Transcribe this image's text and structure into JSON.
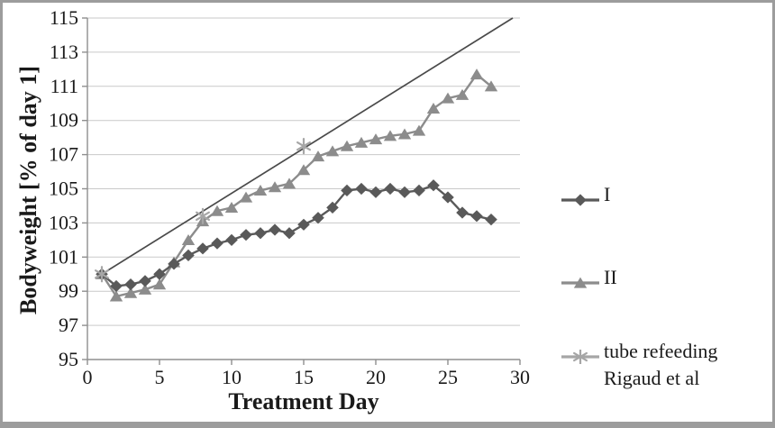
{
  "chart_data": {
    "type": "line",
    "title": "",
    "xlabel": "Treatment Day",
    "ylabel": "Bodyweight [% of day 1]",
    "xlim": [
      0,
      30
    ],
    "ylim": [
      95,
      115
    ],
    "xticks": [
      0,
      5,
      10,
      15,
      20,
      25,
      30
    ],
    "yticks": [
      95,
      97,
      99,
      101,
      103,
      105,
      107,
      109,
      111,
      113,
      115
    ],
    "grid": "horizontal-only",
    "legend_position": "right-outside",
    "axis_color": "#8f8f8f",
    "gridline_color": "#c9c9c9",
    "text_color": "#1a1a1a",
    "days": [
      1,
      2,
      3,
      4,
      5,
      6,
      7,
      8,
      9,
      10,
      11,
      12,
      13,
      14,
      15,
      16,
      17,
      18,
      19,
      20,
      21,
      22,
      23,
      24,
      25,
      26,
      27,
      28
    ],
    "series": [
      {
        "name": "I",
        "marker": "diamond",
        "color": "#595959",
        "values": [
          100.0,
          99.3,
          99.4,
          99.6,
          100.0,
          100.6,
          101.1,
          101.5,
          101.8,
          102.0,
          102.3,
          102.4,
          102.6,
          102.4,
          102.9,
          103.3,
          103.9,
          104.9,
          105.0,
          104.8,
          105.0,
          104.8,
          104.9,
          105.2,
          104.5,
          103.6,
          103.4,
          103.2
        ]
      },
      {
        "name": "II",
        "marker": "triangle",
        "color": "#8c8c8c",
        "values": [
          100.0,
          98.7,
          98.9,
          99.1,
          99.4,
          100.7,
          102.0,
          103.1,
          103.7,
          103.9,
          104.5,
          104.9,
          105.1,
          105.3,
          106.1,
          106.9,
          107.2,
          107.5,
          107.7,
          107.9,
          108.1,
          108.2,
          108.4,
          109.7,
          110.3,
          110.5,
          111.7,
          111.0
        ]
      },
      {
        "name": "tube refeeding Rigaud et al",
        "marker": "asterisk",
        "color": "#a6a6a6",
        "x": [
          1,
          8,
          15
        ],
        "values": [
          100.0,
          103.4,
          107.5
        ],
        "trendline": {
          "from_x": 1,
          "from_y": 100,
          "to_x": 29.5,
          "to_y": 115,
          "color": "#4a4a4a"
        }
      }
    ],
    "legend": [
      {
        "label": "I",
        "lines": [
          "I"
        ]
      },
      {
        "label": "II",
        "lines": [
          "II"
        ]
      },
      {
        "label": "tube refeeding Rigaud et al",
        "lines": [
          "tube refeeding",
          "Rigaud et al"
        ]
      }
    ]
  }
}
